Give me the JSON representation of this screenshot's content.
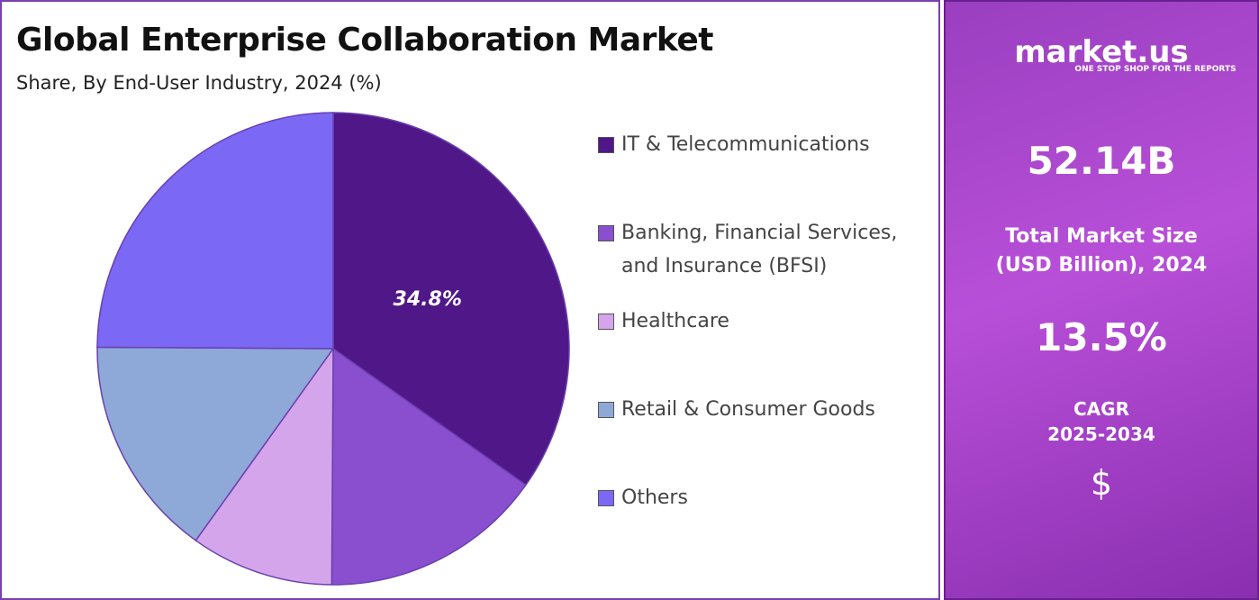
{
  "chart_data": {
    "type": "pie",
    "title": "Global Enterprise Collaboration Market",
    "subtitle": "Share, By End-User Industry, 2024 (%)",
    "categories": [
      "IT & Telecommunications",
      "Banking, Financial Services, and Insurance (BFSI)",
      "Healthcare",
      "Retail & Consumer Goods",
      "Others"
    ],
    "values": [
      34.8,
      15.3,
      9.8,
      15.2,
      24.9
    ],
    "value_labels": [
      "34.8%",
      null,
      null,
      null,
      null
    ],
    "colors": [
      "#4f1787",
      "#8a4fcf",
      "#d4a5ea",
      "#8ea8d8",
      "#7b68f5"
    ],
    "legend": "right"
  },
  "sidebar": {
    "brand": "market.us",
    "tagline": "ONE STOP SHOP FOR THE REPORTS",
    "market_size": "52.14B",
    "market_size_caption": [
      "Total Market Size",
      "(USD Billion), 2024"
    ],
    "cagr": "13.5%",
    "cagr_caption": [
      "CAGR",
      "2025-2034"
    ],
    "icon_symbol": "$"
  }
}
